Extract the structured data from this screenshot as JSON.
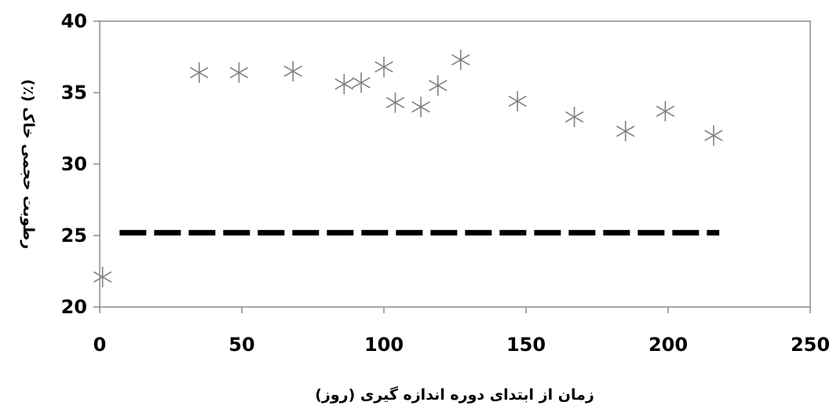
{
  "chart_data": {
    "type": "scatter",
    "title": "",
    "xlabel": "زمان از ابتدای دوره اندازه گیری (روز)",
    "ylabel": "رطوبت حجمی خاک (٪)",
    "xlim": [
      0,
      250
    ],
    "ylim": [
      20,
      40
    ],
    "x_ticks": [
      0,
      50,
      100,
      150,
      200,
      250
    ],
    "y_ticks": [
      20,
      25,
      30,
      35,
      40
    ],
    "x_tick_labels": [
      "0",
      "50",
      "100",
      "150",
      "200",
      "250"
    ],
    "y_tick_labels": [
      "20",
      "25",
      "30",
      "35",
      "40"
    ],
    "grid": false,
    "legend": "none",
    "series": [
      {
        "marker": "asterisk",
        "color": "#808080",
        "points": [
          {
            "x": 1,
            "y": 22.1
          },
          {
            "x": 35,
            "y": 36.4
          },
          {
            "x": 49,
            "y": 36.4
          },
          {
            "x": 68,
            "y": 36.5
          },
          {
            "x": 86,
            "y": 35.6
          },
          {
            "x": 92,
            "y": 35.7
          },
          {
            "x": 100,
            "y": 36.8
          },
          {
            "x": 104,
            "y": 34.3
          },
          {
            "x": 113,
            "y": 34.0
          },
          {
            "x": 119,
            "y": 35.5
          },
          {
            "x": 127,
            "y": 37.3
          },
          {
            "x": 147,
            "y": 34.4
          },
          {
            "x": 167,
            "y": 33.3
          },
          {
            "x": 185,
            "y": 32.3
          },
          {
            "x": 199,
            "y": 33.7
          },
          {
            "x": 216,
            "y": 32.0
          }
        ]
      }
    ],
    "reference_line": {
      "style": "dashed",
      "color": "#000000",
      "y": 25.2,
      "x_start": 7,
      "x_end": 218
    }
  }
}
